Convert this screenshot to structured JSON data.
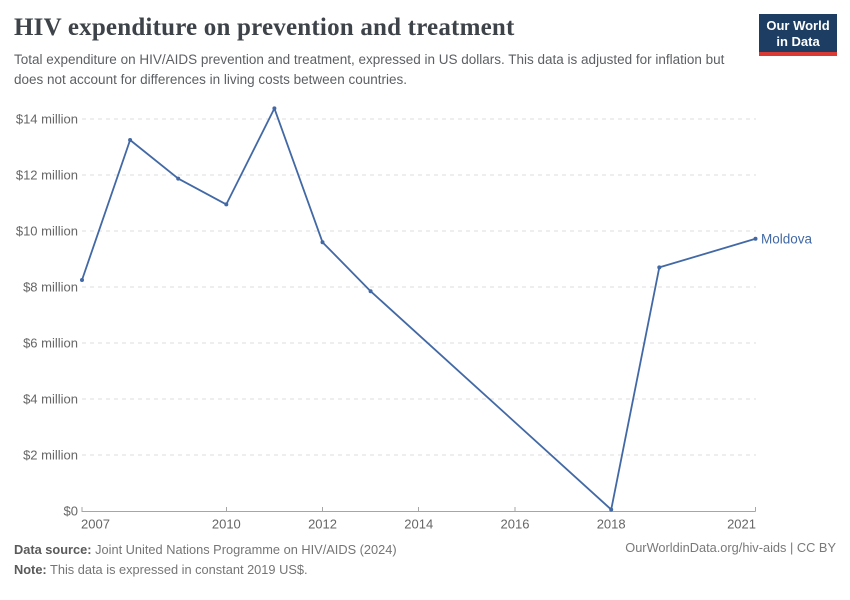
{
  "header": {
    "title": "HIV expenditure on prevention and treatment",
    "subtitle": "Total expenditure on HIV/AIDS prevention and treatment, expressed in US dollars. This data is adjusted for inflation but does not account for differences in living costs between countries.",
    "logo": {
      "line1": "Our World",
      "line2": "in Data",
      "bg_color": "#1d3d63",
      "accent_color": "#d93a34"
    }
  },
  "chart_data": {
    "type": "line",
    "title": "HIV expenditure on prevention and treatment",
    "xlabel": "",
    "ylabel": "",
    "y_unit": "million US$ (constant 2019)",
    "x_range": [
      2007,
      2021
    ],
    "y_range": [
      0,
      14
    ],
    "grid": "horizontal dashed",
    "legend_position": "end-of-line label",
    "y_ticks": [
      {
        "value": 0,
        "label": "$0"
      },
      {
        "value": 2,
        "label": "$2 million"
      },
      {
        "value": 4,
        "label": "$4 million"
      },
      {
        "value": 6,
        "label": "$6 million"
      },
      {
        "value": 8,
        "label": "$8 million"
      },
      {
        "value": 10,
        "label": "$10 million"
      },
      {
        "value": 12,
        "label": "$12 million"
      },
      {
        "value": 14,
        "label": "$14 million"
      }
    ],
    "x_ticks": [
      {
        "year": 2007,
        "label": "2007"
      },
      {
        "year": 2010,
        "label": "2010"
      },
      {
        "year": 2012,
        "label": "2012"
      },
      {
        "year": 2014,
        "label": "2014"
      },
      {
        "year": 2016,
        "label": "2016"
      },
      {
        "year": 2018,
        "label": "2018"
      },
      {
        "year": 2021,
        "label": "2021"
      }
    ],
    "series": [
      {
        "name": "Moldova",
        "color": "#4269a5",
        "points": [
          [
            2007,
            8.25
          ],
          [
            2008,
            13.25
          ],
          [
            2009,
            11.87
          ],
          [
            2010,
            10.95
          ],
          [
            2011,
            14.38
          ],
          [
            2012,
            9.6
          ],
          [
            2013,
            7.85
          ],
          [
            2018,
            0.05
          ],
          [
            2019,
            8.7
          ],
          [
            2021,
            9.72
          ]
        ]
      }
    ],
    "style": {
      "grid_color": "#dddddd",
      "axis_color": "#a6a6a6",
      "tick_label_color": "#666666"
    }
  },
  "footer": {
    "source_label": "Data source:",
    "source_text": "Joint United Nations Programme on HIV/AIDS (2024)",
    "note_label": "Note:",
    "note_text": "This data is expressed in constant 2019 US$.",
    "credit": "OurWorldinData.org/hiv-aids | CC BY"
  }
}
